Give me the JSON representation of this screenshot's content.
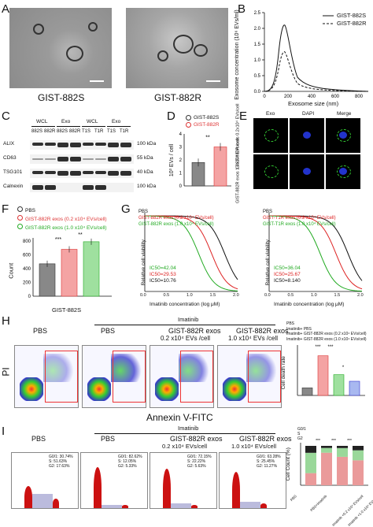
{
  "panels": {
    "A": "A",
    "B": "B",
    "C": "C",
    "D": "D",
    "E": "E",
    "F": "F",
    "G": "G",
    "H": "H",
    "I": "I"
  },
  "panel_a": {
    "left_caption": "GIST-882S",
    "right_caption": "GIST-882R"
  },
  "panel_b": {
    "ylabel": "Exosome concentration (10⁶ EVs/ml)",
    "xlabel": "Exosome size (nm)",
    "legend": [
      "GIST-882S",
      "GIST-882R"
    ],
    "yticks": [
      "0.0",
      "0.5",
      "1.0",
      "1.5",
      "2.0",
      "2.5"
    ],
    "xticks": [
      "0",
      "200",
      "400",
      "600",
      "800"
    ]
  },
  "panel_c": {
    "header_groups": [
      "WCL",
      "Exo",
      "WCL",
      "Exo"
    ],
    "lanes": [
      "882S",
      "882R",
      "882S",
      "882R",
      "T1S",
      "T1R",
      "T1S",
      "T1R"
    ],
    "rows": [
      "ALIX",
      "CD63",
      "TSG101",
      "Calnexin"
    ],
    "kda": [
      "100 kDa",
      "55 kDa",
      "40 kDa",
      "100 kDa"
    ]
  },
  "panel_d": {
    "legend": [
      "GIST-882S",
      "GIST-882R"
    ],
    "ylabel": "10³ EVs / cell",
    "yticks": [
      "0",
      "1",
      "2",
      "3",
      "4"
    ],
    "sig": "**"
  },
  "panel_e": {
    "cols": [
      "Exo",
      "DAPI",
      "Merge"
    ],
    "row1": "GIST-882R exos 0.2x10⁴ EVs/cell",
    "row2": "GIST-882R exos 1.0x10⁴ EVs/cell"
  },
  "panel_f": {
    "legend": [
      "PBS",
      "GIST-882R exos (0.2 x10⁴ EVs/cell)",
      "GIST-882R exos (1.0 x10⁴ EVs/cell)"
    ],
    "ylabel": "Count",
    "xlabel": "GIST-882S",
    "yticks": [
      "0",
      "200",
      "400",
      "600",
      "800"
    ],
    "sig": [
      "***",
      "**"
    ]
  },
  "panel_g": {
    "left": {
      "legend": [
        "PBS",
        "GIST-882R exos (0.2 x10⁴ EVs/cell)",
        "GIST-882R exos (1.0 x10⁴ EVs/cell)"
      ],
      "ic50": [
        "IC50=42.04",
        "IC50=29.53",
        "IC50=10.76"
      ]
    },
    "right": {
      "legend": [
        "PBS",
        "GIST-T1R exos (0.2 x10⁴ EVs/cell)",
        "GIST-T1R exos (1.0 x10⁴ EVs/cell)"
      ],
      "ic50": [
        "IC50=36.04",
        "IC50=25.67",
        "IC50=8.140"
      ]
    },
    "ylabel": "Relative cell viability",
    "xlabel": "Imatinib concentration (log μM)",
    "xticks": [
      "0.0",
      "0.5",
      "1.0",
      "1.5",
      "2.0"
    ]
  },
  "panel_h": {
    "imatinib": "Imatinib",
    "plots": [
      "PBS",
      "PBS",
      "GIST-882R exos",
      "GIST-882R exos"
    ],
    "sub": [
      "",
      "",
      "0.2 x10⁴ EVs /cell",
      "1.0 x10⁴ EVs /cell"
    ],
    "xlabel": "Annexin V-FITC",
    "ylabel": "PI",
    "bar_ylabel": "Cell death rate",
    "legend": [
      "PBS",
      "Imatinib+ PBS",
      "Imatinib+ GIST-882R exos (0.2 x10⁴ EVs/cell)",
      "Imatinib+ GIST-882R exos (1.0 x10⁴ EVs/cell)"
    ],
    "sig": [
      "***",
      "***",
      "*"
    ]
  },
  "panel_i": {
    "imatinib": "Imatinib",
    "plots": [
      "PBS",
      "PBS",
      "GIST-882R exos",
      "GIST-882R exos"
    ],
    "sub": [
      "",
      "",
      "0.2 x10⁴ EVs/cell",
      "1.0 x10⁴ EVs/cell"
    ],
    "stats": [
      [
        "G0/1: 30.74%",
        "S: 51.63%",
        "G2: 17.63%"
      ],
      [
        "G0/1: 82.62%",
        "S: 12.05%",
        "G2: 5.33%"
      ],
      [
        "G0/1: 72.15%",
        "S: 22.22%",
        "G2: 5.63%"
      ],
      [
        "G0/1: 63.28%",
        "S: 25.45%",
        "G2: 11.27%"
      ]
    ],
    "bar_ylabel": "Cell Count (%)",
    "legend": [
      "G0/1",
      "S",
      "G2"
    ],
    "xcats": [
      "PBS",
      "PBS+Imatinib",
      "Imatinib +0.2 x10⁴ EVs/cell",
      "Imatinib +1.0 x10⁴ EVs/cell"
    ],
    "sig": [
      "***",
      "***",
      "***"
    ]
  },
  "chart_data": [
    {
      "type": "bar",
      "title": "",
      "categories": [
        "GIST-882S",
        "GIST-882R"
      ],
      "values": [
        1.8,
        3.0
      ],
      "ylabel": "10³ EVs / cell",
      "ylim": [
        0,
        4
      ]
    },
    {
      "type": "bar",
      "title": "",
      "categories": [
        "PBS",
        "GIST-882R exos (0.2 x10⁴ EVs/cell)",
        "GIST-882R exos (1.0 x10⁴ EVs/cell)"
      ],
      "values": [
        470,
        680,
        790
      ],
      "ylabel": "Count",
      "xlabel": "GIST-882S",
      "ylim": [
        0,
        800
      ]
    },
    {
      "type": "bar",
      "title": "",
      "categories": [
        "PBS",
        "Imatinib+ PBS",
        "Imatinib+ GIST-882R exos (0.2 x10⁴ EVs/cell)",
        "Imatinib+ GIST-882R exos (1.0 x10⁴ EVs/cell)"
      ],
      "values": [
        8,
        42,
        22,
        15
      ],
      "ylabel": "Cell death rate",
      "ylim": [
        0,
        50
      ]
    }
  ]
}
